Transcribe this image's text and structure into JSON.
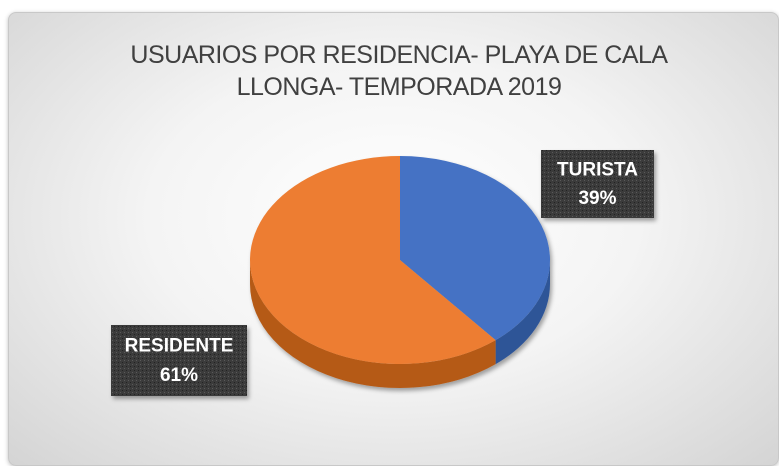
{
  "chart_data": {
    "type": "pie",
    "title": "USUARIOS POR RESIDENCIA- PLAYA DE CALA LLONGA- TEMPORADA 2019",
    "categories": [
      "TURISTA",
      "RESIDENTE"
    ],
    "values": [
      39,
      61
    ],
    "value_labels": [
      "39%",
      "61%"
    ],
    "colors": [
      "#4472c4",
      "#ed7d31"
    ],
    "side_colors": [
      "#2f5597",
      "#b55a17"
    ]
  }
}
